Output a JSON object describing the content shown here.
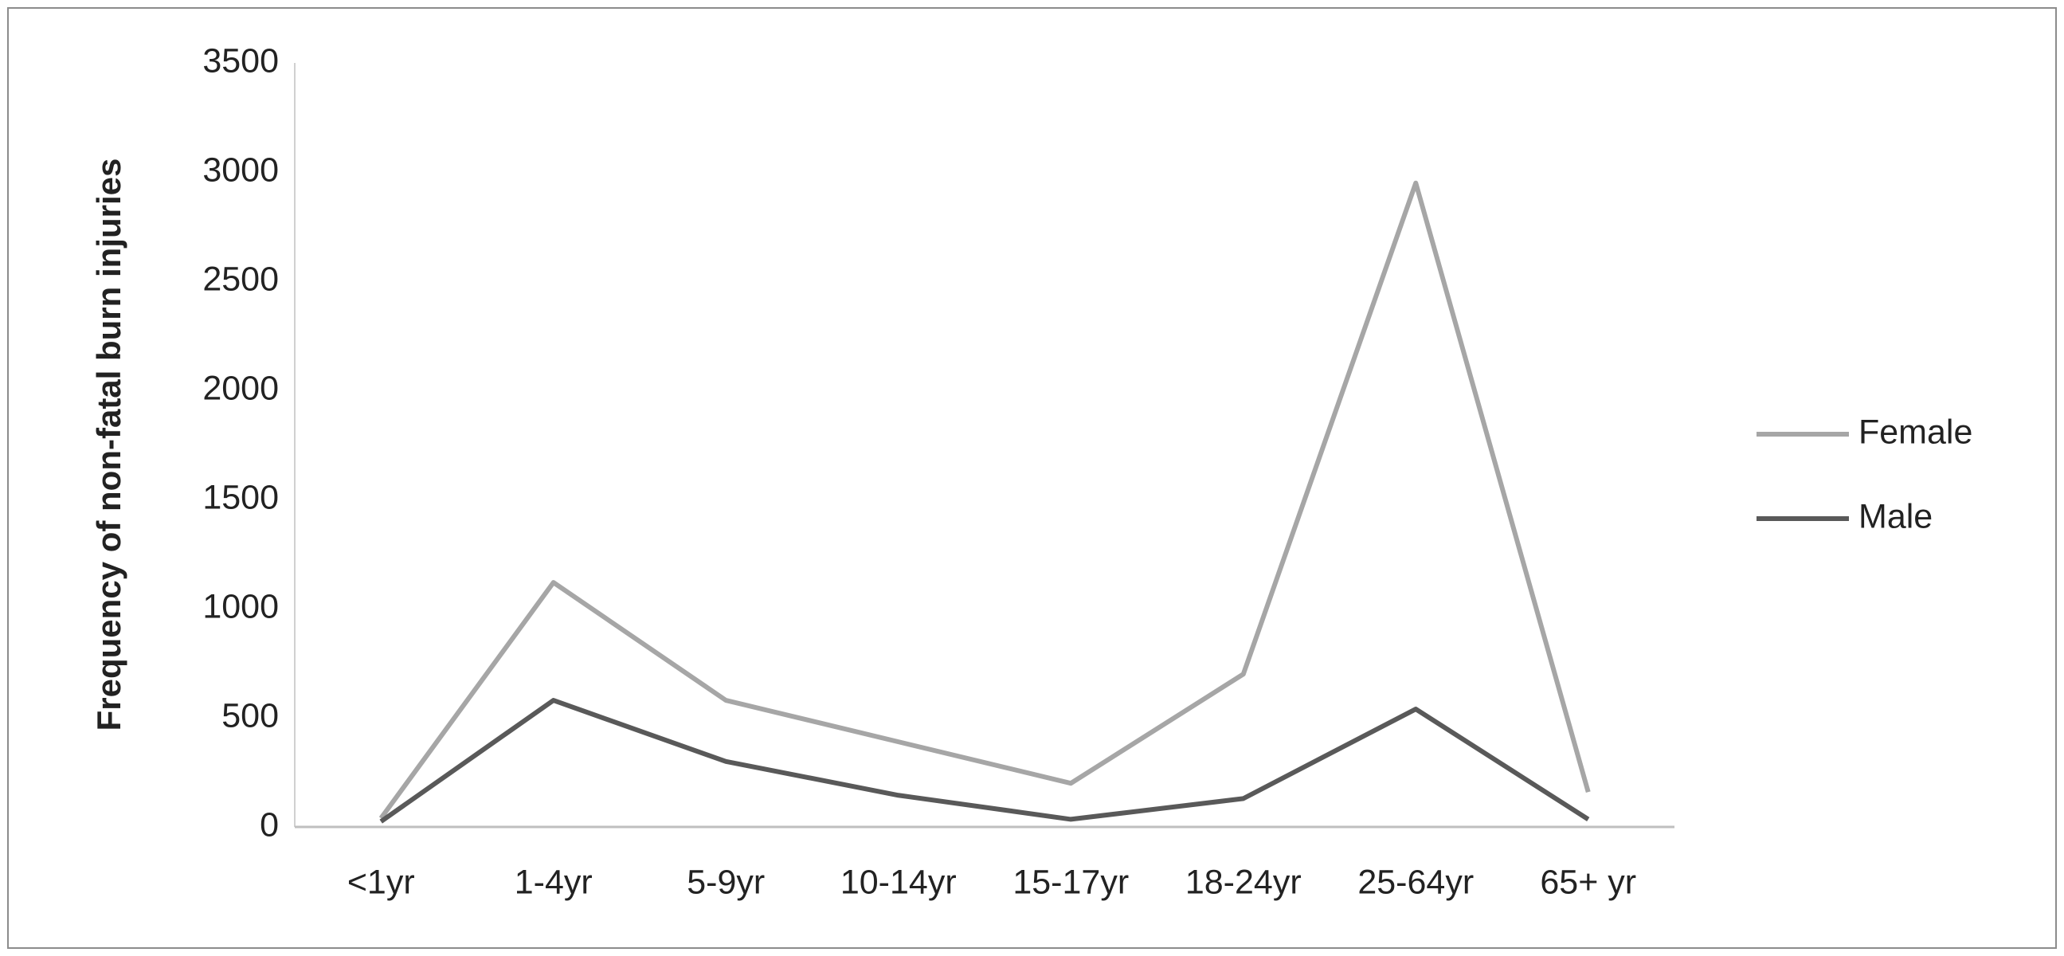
{
  "chart_data": {
    "type": "line",
    "ylabel": "Frequency of non-fatal burn injuries",
    "categories": [
      "<1yr",
      "1-4yr",
      "5-9yr",
      "10-14yr",
      "15-17yr",
      "18-24yr",
      "25-64yr",
      "65+ yr"
    ],
    "series": [
      {
        "name": "Female",
        "color": "#a6a6a6",
        "values": [
          40,
          1120,
          580,
          390,
          200,
          700,
          2950,
          160
        ]
      },
      {
        "name": "Male",
        "color": "#595959",
        "values": [
          25,
          580,
          300,
          145,
          35,
          130,
          540,
          35
        ]
      }
    ],
    "ylim": [
      0,
      3500
    ],
    "yticks": [
      0,
      500,
      1000,
      1500,
      2000,
      2500,
      3000,
      3500
    ],
    "grid": false,
    "legend": "right"
  }
}
